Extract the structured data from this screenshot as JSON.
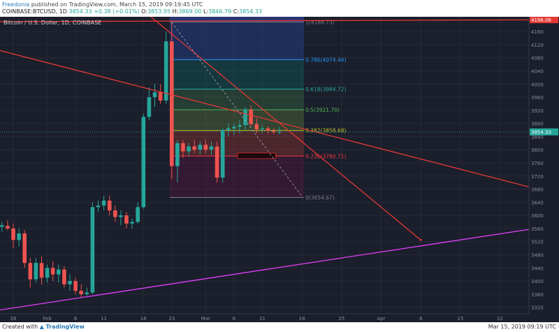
{
  "header": {
    "author": "Freedonia",
    "published_text": "published on TradingView.com, March 15, 2019 09:19:45 UTC",
    "symbol": "COINBASE:BTCUSD, 1D",
    "last": "3854.33",
    "change": "+0.38 (+0.01%)",
    "open_label": "O:",
    "open": "3853.95",
    "high_label": "H:",
    "high": "3869.00",
    "low_label": "L:",
    "low": "3846.79",
    "close_label": "C:",
    "close": "3854.33"
  },
  "footer": {
    "created_with": "Created with",
    "logo": "TradingView",
    "timestamp": "Mar 15, 2019 09:19 UTC"
  },
  "chart_data": {
    "type": "candlestick",
    "title": "Bitcoin / U.S. Dollar, 1D, COINBASE",
    "ylim": [
      3300,
      4205
    ],
    "y_ticks": [
      3320,
      3360,
      3400,
      3440,
      3480,
      3520,
      3560,
      3600,
      3640,
      3680,
      3720,
      3760,
      3800,
      3840,
      3880,
      3920,
      3960,
      4000,
      4040,
      4080,
      4120,
      4160
    ],
    "x_ticks": [
      {
        "label": "26",
        "t": 0
      },
      {
        "label": "Feb",
        "t": 6
      },
      {
        "label": "6",
        "t": 11
      },
      {
        "label": "11",
        "t": 16
      },
      {
        "label": "18",
        "t": 23
      },
      {
        "label": "23",
        "t": 28
      },
      {
        "label": "Mar",
        "t": 34
      },
      {
        "label": "6",
        "t": 39
      },
      {
        "label": "11",
        "t": 44
      },
      {
        "label": "18",
        "t": 51
      },
      {
        "label": "25",
        "t": 58
      },
      {
        "label": "Apr",
        "t": 65
      },
      {
        "label": "8",
        "t": 72
      },
      {
        "label": "15",
        "t": 79
      },
      {
        "label": "22",
        "t": 86
      }
    ],
    "current_price": {
      "value": 3854.33,
      "label": "3854.33"
    },
    "level_marker": {
      "value": 4196.06,
      "label": "4196.06"
    },
    "candles": [
      {
        "t": -3,
        "o": 3575,
        "h": 3590,
        "l": 3540,
        "c": 3565
      },
      {
        "t": -2,
        "o": 3565,
        "h": 3580,
        "l": 3550,
        "c": 3570
      },
      {
        "t": -1,
        "o": 3568,
        "h": 3585,
        "l": 3555,
        "c": 3560
      },
      {
        "t": 0,
        "o": 3560,
        "h": 3575,
        "l": 3500,
        "c": 3525
      },
      {
        "t": 1,
        "o": 3525,
        "h": 3560,
        "l": 3505,
        "c": 3545
      },
      {
        "t": 2,
        "o": 3545,
        "h": 3555,
        "l": 3440,
        "c": 3455
      },
      {
        "t": 3,
        "o": 3455,
        "h": 3470,
        "l": 3380,
        "c": 3405
      },
      {
        "t": 4,
        "o": 3405,
        "h": 3470,
        "l": 3395,
        "c": 3455
      },
      {
        "t": 5,
        "o": 3455,
        "h": 3475,
        "l": 3390,
        "c": 3410
      },
      {
        "t": 6,
        "o": 3410,
        "h": 3450,
        "l": 3395,
        "c": 3440
      },
      {
        "t": 7,
        "o": 3440,
        "h": 3460,
        "l": 3400,
        "c": 3420
      },
      {
        "t": 8,
        "o": 3420,
        "h": 3450,
        "l": 3395,
        "c": 3435
      },
      {
        "t": 9,
        "o": 3435,
        "h": 3445,
        "l": 3380,
        "c": 3390
      },
      {
        "t": 10,
        "o": 3390,
        "h": 3420,
        "l": 3370,
        "c": 3400
      },
      {
        "t": 11,
        "o": 3400,
        "h": 3410,
        "l": 3360,
        "c": 3370
      },
      {
        "t": 12,
        "o": 3370,
        "h": 3390,
        "l": 3350,
        "c": 3360
      },
      {
        "t": 13,
        "o": 3360,
        "h": 3380,
        "l": 3355,
        "c": 3365
      },
      {
        "t": 14,
        "o": 3365,
        "h": 3640,
        "l": 3360,
        "c": 3625
      },
      {
        "t": 15,
        "o": 3625,
        "h": 3645,
        "l": 3610,
        "c": 3630
      },
      {
        "t": 16,
        "o": 3630,
        "h": 3660,
        "l": 3615,
        "c": 3645
      },
      {
        "t": 17,
        "o": 3645,
        "h": 3660,
        "l": 3600,
        "c": 3615
      },
      {
        "t": 18,
        "o": 3615,
        "h": 3630,
        "l": 3580,
        "c": 3595
      },
      {
        "t": 19,
        "o": 3595,
        "h": 3615,
        "l": 3570,
        "c": 3600
      },
      {
        "t": 20,
        "o": 3600,
        "h": 3610,
        "l": 3560,
        "c": 3575
      },
      {
        "t": 21,
        "o": 3575,
        "h": 3590,
        "l": 3560,
        "c": 3580
      },
      {
        "t": 22,
        "o": 3580,
        "h": 3640,
        "l": 3575,
        "c": 3625
      },
      {
        "t": 23,
        "o": 3625,
        "h": 3910,
        "l": 3620,
        "c": 3900
      },
      {
        "t": 24,
        "o": 3900,
        "h": 3990,
        "l": 3890,
        "c": 3960
      },
      {
        "t": 25,
        "o": 3960,
        "h": 4000,
        "l": 3930,
        "c": 3975
      },
      {
        "t": 26,
        "o": 3975,
        "h": 4000,
        "l": 3940,
        "c": 3950
      },
      {
        "t": 27,
        "o": 3950,
        "h": 4160,
        "l": 3940,
        "c": 4130
      },
      {
        "t": 28,
        "o": 4130,
        "h": 4190,
        "l": 3710,
        "c": 3750
      },
      {
        "t": 29,
        "o": 3750,
        "h": 3830,
        "l": 3700,
        "c": 3820
      },
      {
        "t": 30,
        "o": 3820,
        "h": 3830,
        "l": 3775,
        "c": 3795
      },
      {
        "t": 31,
        "o": 3795,
        "h": 3820,
        "l": 3780,
        "c": 3810
      },
      {
        "t": 32,
        "o": 3810,
        "h": 3830,
        "l": 3790,
        "c": 3800
      },
      {
        "t": 33,
        "o": 3800,
        "h": 3825,
        "l": 3785,
        "c": 3815
      },
      {
        "t": 34,
        "o": 3815,
        "h": 3830,
        "l": 3790,
        "c": 3800
      },
      {
        "t": 35,
        "o": 3800,
        "h": 3825,
        "l": 3785,
        "c": 3810
      },
      {
        "t": 36,
        "o": 3810,
        "h": 3825,
        "l": 3700,
        "c": 3715
      },
      {
        "t": 37,
        "o": 3715,
        "h": 3865,
        "l": 3700,
        "c": 3860
      },
      {
        "t": 38,
        "o": 3860,
        "h": 3880,
        "l": 3840,
        "c": 3865
      },
      {
        "t": 39,
        "o": 3865,
        "h": 3880,
        "l": 3845,
        "c": 3870
      },
      {
        "t": 40,
        "o": 3870,
        "h": 3890,
        "l": 3850,
        "c": 3875
      },
      {
        "t": 41,
        "o": 3875,
        "h": 3930,
        "l": 3860,
        "c": 3922
      },
      {
        "t": 42,
        "o": 3922,
        "h": 3935,
        "l": 3870,
        "c": 3878
      },
      {
        "t": 43,
        "o": 3878,
        "h": 3895,
        "l": 3850,
        "c": 3862
      },
      {
        "t": 44,
        "o": 3862,
        "h": 3875,
        "l": 3850,
        "c": 3865
      },
      {
        "t": 45,
        "o": 3865,
        "h": 3872,
        "l": 3850,
        "c": 3858
      },
      {
        "t": 46,
        "o": 3858,
        "h": 3866,
        "l": 3848,
        "c": 3854
      },
      {
        "t": 47,
        "o": 3853.95,
        "h": 3869,
        "l": 3846.79,
        "c": 3854.33
      }
    ],
    "fibonacci": {
      "t_start": 28,
      "t_end": 51,
      "levels": [
        {
          "label": "1(4188.73)",
          "value": 4188.73,
          "color": "#787b86",
          "fill": "#5d606b"
        },
        {
          "label": "0.786(4074.44)",
          "value": 4074.44,
          "color": "#2196f3",
          "fill": "#2962ff"
        },
        {
          "label": "0.618(3984.72)",
          "value": 3984.72,
          "color": "#26a69a",
          "fill": "#009688"
        },
        {
          "label": "0.5(3921.70)",
          "value": 3921.7,
          "color": "#4caf50",
          "fill": "#4caf50"
        },
        {
          "label": "0.382(3858.68)",
          "value": 3858.68,
          "color": "#b7c12a",
          "fill": "#8bc34a"
        },
        {
          "label": "0.236(3780.71)",
          "value": 3780.71,
          "color": "#f23645",
          "fill": "#f44336"
        },
        {
          "label": "0(3654.67)",
          "value": 3654.67,
          "color": "#787b86",
          "fill": "#880e4f"
        }
      ]
    },
    "trendlines": [
      {
        "name": "red-trendline-1",
        "color": "#e53935",
        "p1": {
          "t": -3,
          "v": 4190
        },
        "p2": {
          "t": 96,
          "v": 4196
        }
      },
      {
        "name": "red-trendline-2",
        "color": "#e53935",
        "p1": {
          "t": -3,
          "v": 4105
        },
        "p2": {
          "t": 96,
          "v": 3665
        }
      },
      {
        "name": "red-trendline-3",
        "color": "#e53935",
        "p1": {
          "t": 22,
          "v": 4238
        },
        "p2": {
          "t": 72,
          "v": 3525
        }
      },
      {
        "name": "magenta-trendline",
        "color": "#e040fb",
        "p1": {
          "t": -3,
          "v": 3310
        },
        "p2": {
          "t": 96,
          "v": 3570
        }
      },
      {
        "name": "dashed-projection",
        "color": "#9aa0ae",
        "dash": true,
        "p1": {
          "t": 28,
          "v": 4188
        },
        "p2": {
          "t": 51,
          "v": 3658
        }
      }
    ],
    "highlight_box": {
      "t1": 40,
      "t2": 46,
      "v1": 3773,
      "v2": 3790
    }
  }
}
